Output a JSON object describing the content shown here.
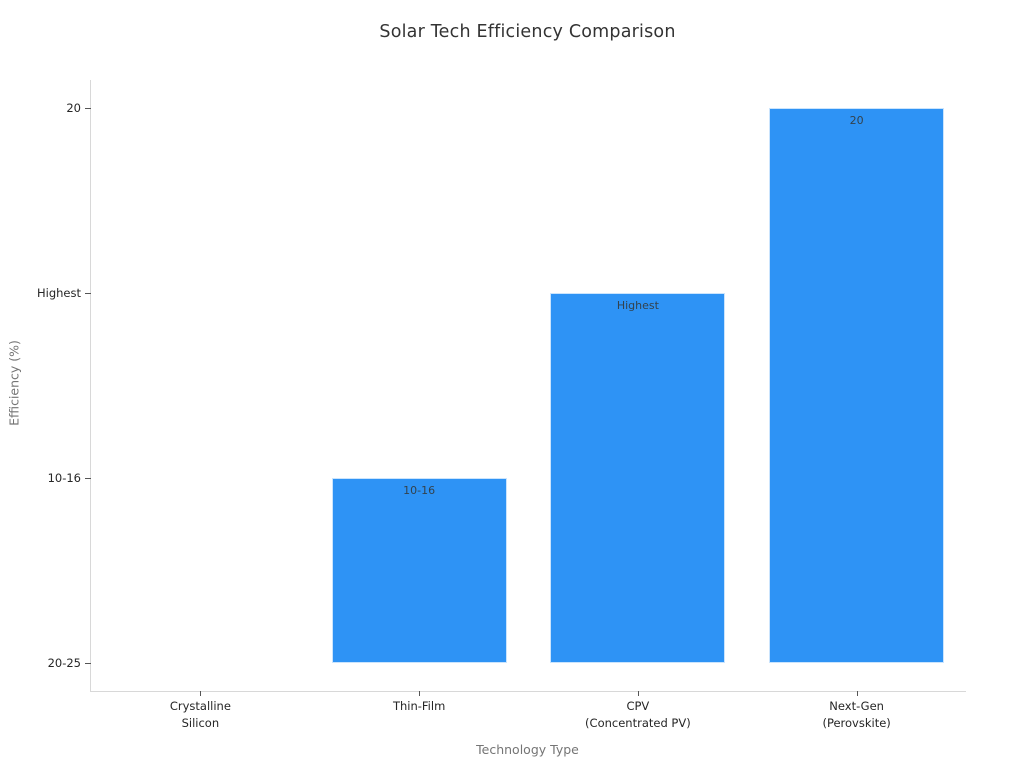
{
  "chart_data": {
    "type": "bar",
    "title": "Solar Tech Efficiency Comparison",
    "xlabel": "Technology Type",
    "ylabel": "Efficiency (%)",
    "categories": [
      "Crystalline Silicon",
      "Thin-Film",
      "CPV (Concentrated PV)",
      "Next-Gen (Perovskite)"
    ],
    "x_tick_lines": [
      [
        "Crystalline",
        "Silicon"
      ],
      [
        "Thin-Film"
      ],
      [
        "CPV",
        "(Concentrated PV)"
      ],
      [
        "Next-Gen",
        "(Perovskite)"
      ]
    ],
    "values": [
      "20-25",
      "10-16",
      "Highest",
      "20"
    ],
    "bar_labels": [
      "",
      "10-16",
      "Highest",
      "20"
    ],
    "y_ticks_bottom_to_top": [
      "20-25",
      "10-16",
      "Highest",
      "20"
    ],
    "y_axis_kind": "categorical",
    "bar_color": "#2E93F5",
    "legend": "none",
    "grid": false
  }
}
